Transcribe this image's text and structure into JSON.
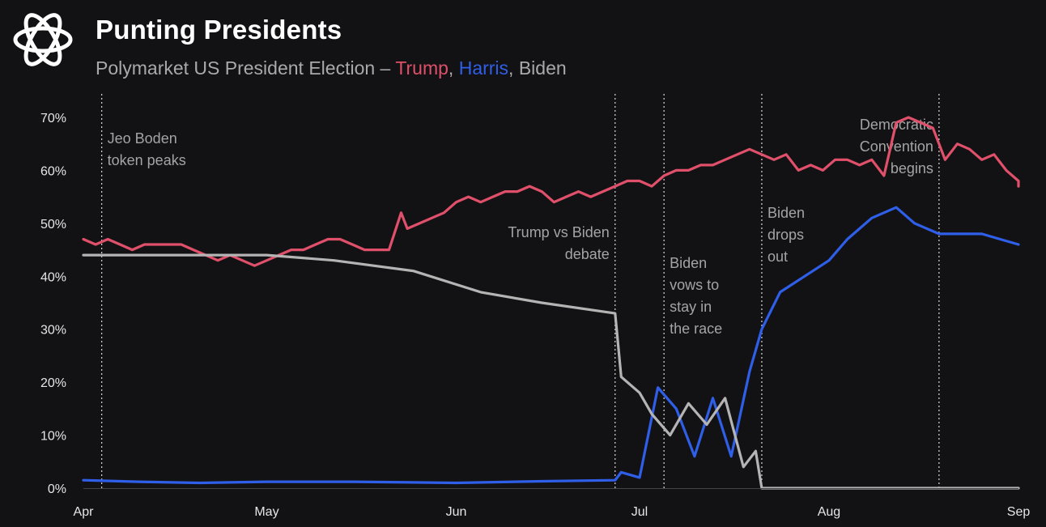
{
  "header": {
    "title": "Punting Presidents",
    "subtitle_prefix": "Polymarket US President Election – ",
    "subtitle_trump": "Trump",
    "subtitle_sep1": ", ",
    "subtitle_harris": "Harris",
    "subtitle_sep2": ", ",
    "subtitle_biden": "Biden"
  },
  "logo": {
    "icon": "woven-knot-logo-icon"
  },
  "colors": {
    "trump": "#e0506a",
    "harris": "#2f5fe8",
    "biden": "#b4b4b4",
    "background": "#121214"
  },
  "chart_data": {
    "type": "line",
    "title": "Punting Presidents",
    "subtitle": "Polymarket US President Election – Trump, Harris, Biden",
    "xlabel": "",
    "ylabel": "",
    "x_range": [
      "2024-04-01",
      "2024-09-01"
    ],
    "xticks": [
      {
        "date": "2024-04-01",
        "label": "Apr"
      },
      {
        "date": "2024-05-01",
        "label": "May"
      },
      {
        "date": "2024-06-01",
        "label": "Jun"
      },
      {
        "date": "2024-07-01",
        "label": "Jul"
      },
      {
        "date": "2024-08-01",
        "label": "Aug"
      },
      {
        "date": "2024-09-01",
        "label": "Sep"
      }
    ],
    "ylim": [
      0,
      70
    ],
    "yticks": [
      0,
      10,
      20,
      30,
      40,
      50,
      60,
      70
    ],
    "ytick_labels": [
      "0%",
      "10%",
      "20%",
      "30%",
      "40%",
      "50%",
      "60%",
      "70%"
    ],
    "grid": false,
    "series": [
      {
        "name": "Trump",
        "color": "#e0506a",
        "points": [
          [
            "2024-04-01",
            47
          ],
          [
            "2024-04-03",
            46
          ],
          [
            "2024-04-05",
            47
          ],
          [
            "2024-04-07",
            46
          ],
          [
            "2024-04-09",
            45
          ],
          [
            "2024-04-11",
            46
          ],
          [
            "2024-04-14",
            46
          ],
          [
            "2024-04-17",
            46
          ],
          [
            "2024-04-19",
            45
          ],
          [
            "2024-04-21",
            44
          ],
          [
            "2024-04-23",
            43
          ],
          [
            "2024-04-25",
            44
          ],
          [
            "2024-04-27",
            43
          ],
          [
            "2024-04-29",
            42
          ],
          [
            "2024-05-01",
            43
          ],
          [
            "2024-05-03",
            44
          ],
          [
            "2024-05-05",
            45
          ],
          [
            "2024-05-07",
            45
          ],
          [
            "2024-05-09",
            46
          ],
          [
            "2024-05-11",
            47
          ],
          [
            "2024-05-13",
            47
          ],
          [
            "2024-05-15",
            46
          ],
          [
            "2024-05-17",
            45
          ],
          [
            "2024-05-19",
            45
          ],
          [
            "2024-05-21",
            45
          ],
          [
            "2024-05-23",
            52
          ],
          [
            "2024-05-24",
            49
          ],
          [
            "2024-05-26",
            50
          ],
          [
            "2024-05-28",
            51
          ],
          [
            "2024-05-30",
            52
          ],
          [
            "2024-06-01",
            54
          ],
          [
            "2024-06-03",
            55
          ],
          [
            "2024-06-05",
            54
          ],
          [
            "2024-06-07",
            55
          ],
          [
            "2024-06-09",
            56
          ],
          [
            "2024-06-11",
            56
          ],
          [
            "2024-06-13",
            57
          ],
          [
            "2024-06-15",
            56
          ],
          [
            "2024-06-17",
            54
          ],
          [
            "2024-06-19",
            55
          ],
          [
            "2024-06-21",
            56
          ],
          [
            "2024-06-23",
            55
          ],
          [
            "2024-06-25",
            56
          ],
          [
            "2024-06-27",
            57
          ],
          [
            "2024-06-29",
            58
          ],
          [
            "2024-07-01",
            58
          ],
          [
            "2024-07-03",
            57
          ],
          [
            "2024-07-05",
            59
          ],
          [
            "2024-07-07",
            60
          ],
          [
            "2024-07-09",
            60
          ],
          [
            "2024-07-11",
            61
          ],
          [
            "2024-07-13",
            61
          ],
          [
            "2024-07-15",
            62
          ],
          [
            "2024-07-17",
            63
          ],
          [
            "2024-07-19",
            64
          ],
          [
            "2024-07-21",
            63
          ],
          [
            "2024-07-23",
            62
          ],
          [
            "2024-07-25",
            63
          ],
          [
            "2024-07-27",
            60
          ],
          [
            "2024-07-29",
            61
          ],
          [
            "2024-07-31",
            60
          ],
          [
            "2024-08-02",
            62
          ],
          [
            "2024-08-04",
            62
          ],
          [
            "2024-08-06",
            61
          ],
          [
            "2024-08-08",
            62
          ],
          [
            "2024-08-10",
            59
          ],
          [
            "2024-08-12",
            69
          ],
          [
            "2024-08-14",
            70
          ],
          [
            "2024-08-16",
            69
          ],
          [
            "2024-08-18",
            68
          ],
          [
            "2024-08-20",
            62
          ],
          [
            "2024-08-22",
            65
          ],
          [
            "2024-08-24",
            64
          ],
          [
            "2024-08-26",
            62
          ],
          [
            "2024-08-28",
            63
          ],
          [
            "2024-08-30",
            60
          ],
          [
            "2024-09-01",
            58
          ],
          [
            "2024-09-01",
            57
          ]
        ]
      },
      {
        "name": "Harris",
        "color": "#2f5fe8",
        "points": [
          [
            "2024-04-01",
            1.5
          ],
          [
            "2024-04-10",
            1.2
          ],
          [
            "2024-04-20",
            1.0
          ],
          [
            "2024-05-01",
            1.2
          ],
          [
            "2024-05-15",
            1.2
          ],
          [
            "2024-06-01",
            1.0
          ],
          [
            "2024-06-15",
            1.3
          ],
          [
            "2024-06-27",
            1.5
          ],
          [
            "2024-06-28",
            3
          ],
          [
            "2024-07-01",
            2
          ],
          [
            "2024-07-04",
            19
          ],
          [
            "2024-07-07",
            15
          ],
          [
            "2024-07-10",
            6
          ],
          [
            "2024-07-13",
            17
          ],
          [
            "2024-07-16",
            6
          ],
          [
            "2024-07-19",
            22
          ],
          [
            "2024-07-21",
            30
          ],
          [
            "2024-07-24",
            37
          ],
          [
            "2024-07-28",
            40
          ],
          [
            "2024-08-01",
            43
          ],
          [
            "2024-08-04",
            47
          ],
          [
            "2024-08-08",
            51
          ],
          [
            "2024-08-12",
            53
          ],
          [
            "2024-08-15",
            50
          ],
          [
            "2024-08-19",
            48
          ],
          [
            "2024-08-22",
            48
          ],
          [
            "2024-08-26",
            48
          ],
          [
            "2024-08-29",
            47
          ],
          [
            "2024-09-01",
            46
          ]
        ]
      },
      {
        "name": "Biden",
        "color": "#b4b4b4",
        "points": [
          [
            "2024-04-01",
            44
          ],
          [
            "2024-04-15",
            44
          ],
          [
            "2024-05-01",
            44
          ],
          [
            "2024-05-12",
            43
          ],
          [
            "2024-05-25",
            41
          ],
          [
            "2024-06-05",
            37
          ],
          [
            "2024-06-15",
            35
          ],
          [
            "2024-06-27",
            33
          ],
          [
            "2024-06-28",
            21
          ],
          [
            "2024-07-01",
            18
          ],
          [
            "2024-07-03",
            14
          ],
          [
            "2024-07-06",
            10
          ],
          [
            "2024-07-09",
            16
          ],
          [
            "2024-07-12",
            12
          ],
          [
            "2024-07-15",
            17
          ],
          [
            "2024-07-18",
            4
          ],
          [
            "2024-07-20",
            7
          ],
          [
            "2024-07-21",
            0
          ],
          [
            "2024-08-01",
            0
          ],
          [
            "2024-09-01",
            0
          ]
        ]
      }
    ],
    "events": [
      {
        "date": "2024-04-04",
        "label_lines": [
          "Jeo Boden",
          "token peaks"
        ],
        "align": "left"
      },
      {
        "date": "2024-06-27",
        "label_lines": [
          "Trump vs Biden",
          "debate"
        ],
        "align": "right"
      },
      {
        "date": "2024-07-05",
        "label_lines": [
          "Biden",
          "vows to",
          "stay in",
          "the race"
        ],
        "align": "left"
      },
      {
        "date": "2024-07-21",
        "label_lines": [
          "Biden",
          "drops",
          "out"
        ],
        "align": "left"
      },
      {
        "date": "2024-08-19",
        "label_lines": [
          "Democratic",
          "Convention",
          "begins"
        ],
        "align": "right"
      }
    ]
  }
}
